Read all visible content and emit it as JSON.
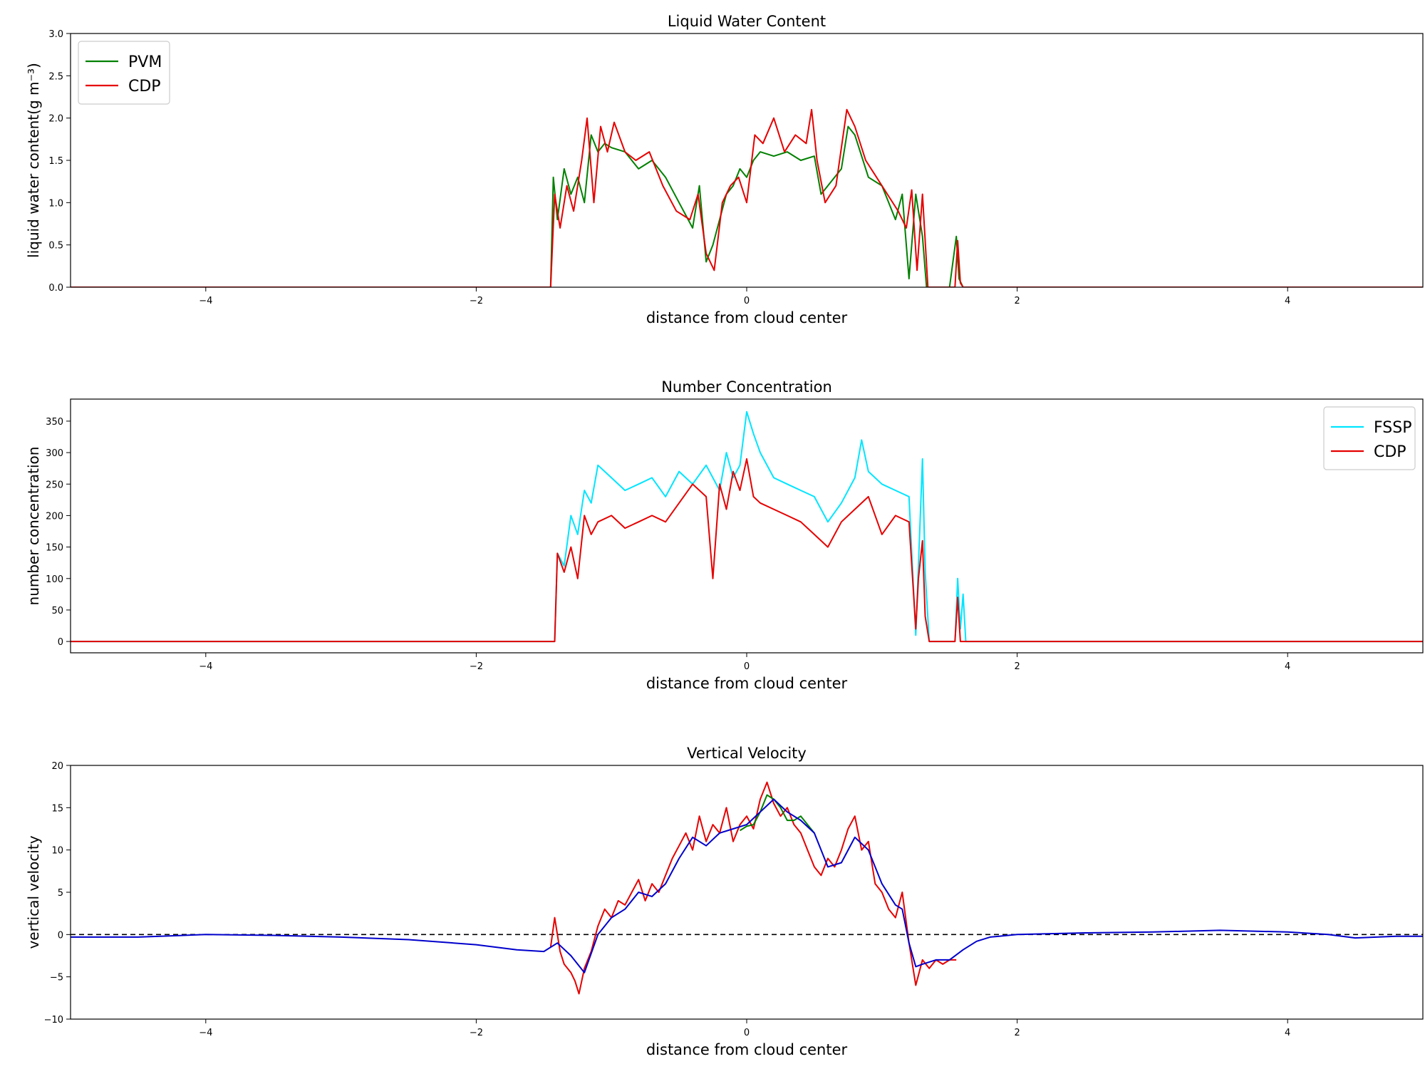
{
  "colors": {
    "green": "#008000",
    "red": "#e60000",
    "cyan": "#00e5ff",
    "blue": "#0000cc",
    "zero_line": "#000000"
  },
  "chart_data": [
    {
      "type": "line",
      "title": "Liquid Water Content",
      "xlabel": "distance from cloud center",
      "ylabel": "liquid water content(g m⁻³)",
      "xlim": [
        -5,
        5
      ],
      "ylim": [
        0,
        3
      ],
      "xticks": [
        -4,
        -2,
        0,
        2,
        4
      ],
      "xtick_labels": [
        "−4",
        "−2",
        "0",
        "2",
        "4"
      ],
      "yticks": [
        0.0,
        0.5,
        1.0,
        1.5,
        2.0,
        2.5,
        3.0
      ],
      "ytick_labels": [
        "0.0",
        "0.5",
        "1.0",
        "1.5",
        "2.0",
        "2.5",
        "3.0"
      ],
      "legend": "top-left",
      "grid": false,
      "series": [
        {
          "name": "PVM",
          "color": "green",
          "x": [
            -5.0,
            -1.45,
            -1.43,
            -1.4,
            -1.35,
            -1.3,
            -1.25,
            -1.2,
            -1.15,
            -1.1,
            -1.05,
            -1.0,
            -0.9,
            -0.8,
            -0.7,
            -0.6,
            -0.5,
            -0.4,
            -0.35,
            -0.3,
            -0.25,
            -0.2,
            -0.15,
            -0.1,
            -0.05,
            0.0,
            0.05,
            0.1,
            0.2,
            0.3,
            0.4,
            0.5,
            0.55,
            0.6,
            0.7,
            0.75,
            0.8,
            0.9,
            1.0,
            1.05,
            1.1,
            1.15,
            1.2,
            1.25,
            1.3,
            1.33,
            1.35,
            1.5,
            1.55,
            1.57,
            1.6,
            5.0
          ],
          "y": [
            0.0,
            0.0,
            1.3,
            0.8,
            1.4,
            1.1,
            1.3,
            1.0,
            1.8,
            1.6,
            1.7,
            1.65,
            1.6,
            1.4,
            1.5,
            1.3,
            1.0,
            0.7,
            1.2,
            0.3,
            0.5,
            0.8,
            1.1,
            1.2,
            1.4,
            1.3,
            1.5,
            1.6,
            1.55,
            1.6,
            1.5,
            1.55,
            1.1,
            1.2,
            1.4,
            1.9,
            1.8,
            1.3,
            1.2,
            1.0,
            0.8,
            1.1,
            0.1,
            1.1,
            0.6,
            0.0,
            0.0,
            0.0,
            0.6,
            0.1,
            0.0,
            0.0
          ]
        },
        {
          "name": "CDP",
          "color": "red",
          "x": [
            -5.0,
            -1.45,
            -1.42,
            -1.38,
            -1.33,
            -1.28,
            -1.22,
            -1.18,
            -1.13,
            -1.08,
            -1.03,
            -0.98,
            -0.9,
            -0.82,
            -0.72,
            -0.62,
            -0.52,
            -0.42,
            -0.36,
            -0.3,
            -0.24,
            -0.18,
            -0.12,
            -0.06,
            0.0,
            0.06,
            0.12,
            0.2,
            0.28,
            0.36,
            0.44,
            0.48,
            0.52,
            0.58,
            0.66,
            0.74,
            0.8,
            0.88,
            0.96,
            1.04,
            1.12,
            1.18,
            1.22,
            1.26,
            1.3,
            1.34,
            1.36,
            1.54,
            1.56,
            1.58,
            1.6,
            5.0
          ],
          "y": [
            0.0,
            0.0,
            1.1,
            0.7,
            1.2,
            0.9,
            1.5,
            2.0,
            1.0,
            1.9,
            1.6,
            1.95,
            1.6,
            1.5,
            1.6,
            1.2,
            0.9,
            0.8,
            1.1,
            0.4,
            0.2,
            1.0,
            1.2,
            1.3,
            1.0,
            1.8,
            1.7,
            2.0,
            1.6,
            1.8,
            1.7,
            2.1,
            1.5,
            1.0,
            1.2,
            2.1,
            1.9,
            1.5,
            1.3,
            1.1,
            0.9,
            0.7,
            1.15,
            0.2,
            1.1,
            0.0,
            0.0,
            0.0,
            0.55,
            0.05,
            0.0,
            0.0
          ]
        }
      ]
    },
    {
      "type": "line",
      "title": "Number Concentration",
      "xlabel": "distance from cloud center",
      "ylabel": "number concentration",
      "xlim": [
        -5,
        5
      ],
      "ylim": [
        -18,
        385
      ],
      "xticks": [
        -4,
        -2,
        0,
        2,
        4
      ],
      "xtick_labels": [
        "−4",
        "−2",
        "0",
        "2",
        "4"
      ],
      "yticks": [
        0,
        50,
        100,
        150,
        200,
        250,
        300,
        350
      ],
      "ytick_labels": [
        "0",
        "50",
        "100",
        "150",
        "200",
        "250",
        "300",
        "350"
      ],
      "legend": "top-right",
      "grid": false,
      "series": [
        {
          "name": "FSSP",
          "color": "cyan",
          "x": [
            -5.0,
            -1.42,
            -1.4,
            -1.35,
            -1.3,
            -1.25,
            -1.2,
            -1.15,
            -1.1,
            -1.0,
            -0.9,
            -0.8,
            -0.7,
            -0.6,
            -0.5,
            -0.4,
            -0.3,
            -0.2,
            -0.15,
            -0.1,
            -0.05,
            0.0,
            0.05,
            0.1,
            0.2,
            0.3,
            0.4,
            0.5,
            0.6,
            0.7,
            0.8,
            0.85,
            0.9,
            1.0,
            1.1,
            1.2,
            1.25,
            1.27,
            1.3,
            1.32,
            1.35,
            1.36,
            1.54,
            1.56,
            1.58,
            1.6,
            1.62,
            5.0
          ],
          "y": [
            0.0,
            0.0,
            140,
            120,
            200,
            170,
            240,
            220,
            280,
            260,
            240,
            250,
            260,
            230,
            270,
            250,
            280,
            240,
            300,
            260,
            280,
            365,
            330,
            300,
            260,
            250,
            240,
            230,
            190,
            220,
            260,
            320,
            270,
            250,
            240,
            230,
            10,
            120,
            290,
            110,
            0.0,
            0.0,
            0.0,
            100,
            20,
            75,
            0.0,
            0.0
          ]
        },
        {
          "name": "CDP",
          "color": "red",
          "x": [
            -5.0,
            -1.42,
            -1.4,
            -1.35,
            -1.3,
            -1.25,
            -1.2,
            -1.15,
            -1.1,
            -1.0,
            -0.9,
            -0.8,
            -0.7,
            -0.6,
            -0.5,
            -0.4,
            -0.3,
            -0.25,
            -0.2,
            -0.15,
            -0.1,
            -0.05,
            0.0,
            0.05,
            0.1,
            0.2,
            0.3,
            0.4,
            0.5,
            0.6,
            0.7,
            0.8,
            0.9,
            1.0,
            1.1,
            1.2,
            1.25,
            1.27,
            1.3,
            1.32,
            1.35,
            1.36,
            1.54,
            1.56,
            1.58,
            1.6,
            5.0
          ],
          "y": [
            0.0,
            0.0,
            140,
            110,
            150,
            100,
            200,
            170,
            190,
            200,
            180,
            190,
            200,
            190,
            220,
            250,
            230,
            100,
            250,
            210,
            270,
            240,
            290,
            230,
            220,
            210,
            200,
            190,
            170,
            150,
            190,
            210,
            230,
            170,
            200,
            190,
            20,
            100,
            160,
            40,
            0.0,
            0.0,
            0.0,
            70,
            0.0,
            0.0,
            0.0
          ]
        }
      ]
    },
    {
      "type": "line",
      "title": "Vertical Velocity",
      "xlabel": "distance from cloud center",
      "ylabel": "vertical velocity",
      "xlim": [
        -5,
        5
      ],
      "ylim": [
        -10,
        20
      ],
      "xticks": [
        -4,
        -2,
        0,
        2,
        4
      ],
      "xtick_labels": [
        "−4",
        "−2",
        "0",
        "2",
        "4"
      ],
      "yticks": [
        -10,
        -5,
        0,
        5,
        10,
        15,
        20
      ],
      "ytick_labels": [
        "−10",
        "−5",
        "0",
        "5",
        "10",
        "15",
        "20"
      ],
      "grid": false,
      "hline": 0,
      "series": [
        {
          "color": "red",
          "x": [
            -1.45,
            -1.42,
            -1.38,
            -1.35,
            -1.3,
            -1.27,
            -1.24,
            -1.2,
            -1.15,
            -1.1,
            -1.05,
            -1.0,
            -0.95,
            -0.9,
            -0.85,
            -0.8,
            -0.75,
            -0.7,
            -0.65,
            -0.6,
            -0.55,
            -0.5,
            -0.45,
            -0.4,
            -0.35,
            -0.3,
            -0.25,
            -0.2,
            -0.15,
            -0.1,
            -0.05,
            0.0,
            0.05,
            0.1,
            0.15,
            0.2,
            0.25,
            0.3,
            0.35,
            0.4,
            0.45,
            0.5,
            0.55,
            0.6,
            0.65,
            0.7,
            0.75,
            0.8,
            0.85,
            0.9,
            0.95,
            1.0,
            1.05,
            1.1,
            1.15,
            1.2,
            1.25,
            1.3,
            1.35,
            1.4,
            1.45,
            1.5,
            1.55
          ],
          "y": [
            -1.5,
            2.0,
            -2.0,
            -3.5,
            -4.5,
            -5.5,
            -7.0,
            -4.0,
            -2.0,
            1.0,
            3.0,
            2.0,
            4.0,
            3.5,
            5.0,
            6.5,
            4.0,
            6.0,
            5.0,
            7.0,
            9.0,
            10.5,
            12.0,
            10.0,
            14.0,
            11.0,
            13.0,
            12.0,
            15.0,
            11.0,
            13.0,
            14.0,
            12.5,
            16.0,
            18.0,
            15.5,
            14.0,
            15.0,
            13.0,
            12.0,
            10.0,
            8.0,
            7.0,
            9.0,
            8.0,
            10.0,
            12.5,
            14.0,
            10.0,
            11.0,
            6.0,
            5.0,
            3.0,
            2.0,
            5.0,
            -1.0,
            -6.0,
            -3.0,
            -4.0,
            -3.0,
            -3.5,
            -3.0,
            -3.0
          ]
        },
        {
          "color": "green",
          "x": [
            -0.05,
            0.0,
            0.05,
            0.1,
            0.15,
            0.2,
            0.25,
            0.3,
            0.35,
            0.4,
            0.45,
            0.5
          ],
          "y": [
            12.3,
            12.8,
            13.0,
            14.5,
            16.5,
            16.0,
            15.0,
            13.5,
            13.5,
            14.0,
            13.0,
            12.0
          ]
        },
        {
          "color": "blue",
          "x": [
            -5.0,
            -4.5,
            -4.0,
            -3.5,
            -3.0,
            -2.5,
            -2.0,
            -1.7,
            -1.5,
            -1.4,
            -1.3,
            -1.2,
            -1.1,
            -1.0,
            -0.9,
            -0.8,
            -0.7,
            -0.6,
            -0.5,
            -0.4,
            -0.3,
            -0.2,
            -0.1,
            0.0,
            0.1,
            0.2,
            0.3,
            0.4,
            0.5,
            0.6,
            0.7,
            0.8,
            0.9,
            1.0,
            1.1,
            1.15,
            1.2,
            1.25,
            1.3,
            1.4,
            1.5,
            1.6,
            1.7,
            1.8,
            2.0,
            2.5,
            3.0,
            3.5,
            4.0,
            4.3,
            4.5,
            4.8,
            5.0
          ],
          "y": [
            -0.3,
            -0.3,
            0.0,
            -0.1,
            -0.3,
            -0.6,
            -1.2,
            -1.8,
            -2.0,
            -1.0,
            -2.5,
            -4.5,
            0.0,
            2.0,
            3.0,
            5.0,
            4.5,
            6.0,
            9.0,
            11.5,
            10.5,
            12.0,
            12.5,
            13.0,
            14.5,
            16.0,
            14.5,
            13.5,
            12.0,
            8.0,
            8.5,
            11.5,
            10.0,
            6.0,
            3.5,
            3.0,
            -1.0,
            -3.8,
            -3.5,
            -3.0,
            -3.0,
            -1.8,
            -0.8,
            -0.3,
            0.0,
            0.2,
            0.3,
            0.5,
            0.3,
            0.0,
            -0.4,
            -0.2,
            -0.2
          ]
        }
      ]
    }
  ]
}
